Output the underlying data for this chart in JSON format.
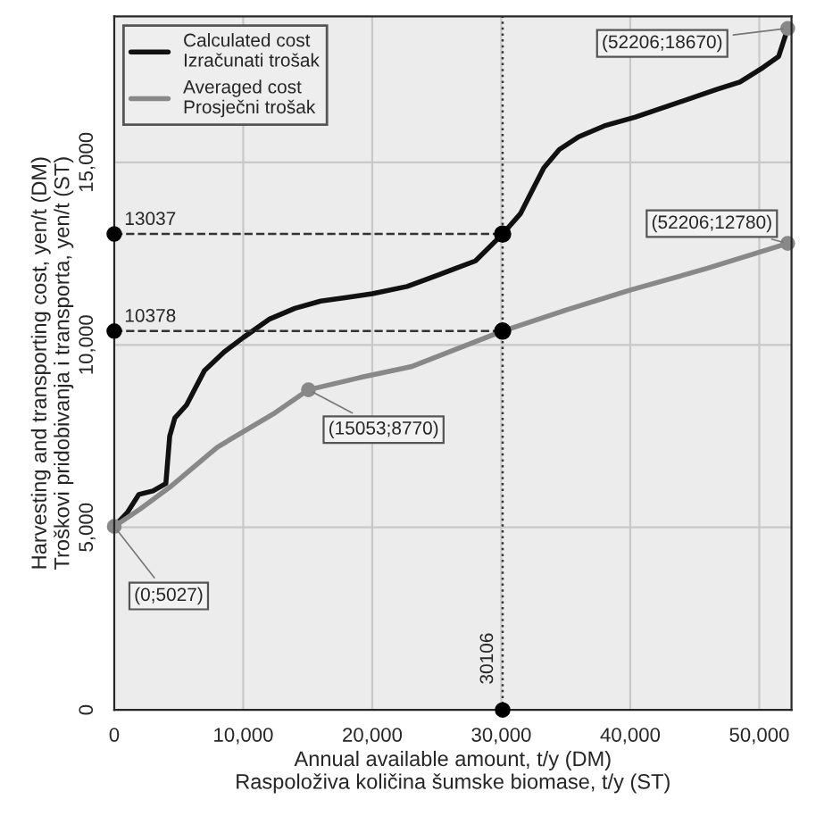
{
  "chart_data": {
    "type": "line",
    "xlabel": "Annual available amount, t/y (DM)\nRaspoloživa količina šumske biomase, t/y (ST)",
    "ylabel": "Harvesting and transporting cost, yen/t (DM)\nTroškovi pridobivanja i transporta, yen/t (ST)",
    "series": [
      {
        "name": "Calculated cost\nIzračunati trošak",
        "color": "#111111",
        "x": [
          0,
          1000,
          1900,
          3000,
          4000,
          4300,
          4700,
          5600,
          7000,
          8500,
          10000,
          12000,
          14000,
          16000,
          18000,
          20000,
          22700,
          25000,
          28000,
          30106,
          31500,
          32500,
          33300,
          34500,
          36000,
          38000,
          40400,
          43000,
          46700,
          48500,
          50300,
          51500,
          52206
        ],
        "values": [
          5027,
          5400,
          5900,
          6000,
          6200,
          7500,
          8000,
          8350,
          9300,
          9800,
          10200,
          10700,
          11000,
          11200,
          11300,
          11400,
          11600,
          11900,
          12300,
          13037,
          13600,
          14300,
          14850,
          15350,
          15700,
          16000,
          16240,
          16550,
          17000,
          17200,
          17600,
          17900,
          18670
        ]
      },
      {
        "name": "Averaged cost\nProsječni trošak",
        "color": "#888888",
        "x": [
          0,
          2000,
          4300,
          8000,
          12300,
          15053,
          19000,
          23000,
          30106,
          35000,
          40000,
          46000,
          52206
        ],
        "values": [
          5027,
          5500,
          6100,
          7200,
          8100,
          8770,
          9100,
          9400,
          10378,
          10950,
          11500,
          12100,
          12780
        ]
      },
      {
        "type": "scatter",
        "color": "#000000",
        "x": [
          0,
          0,
          30106
        ],
        "values": [
          13037,
          10378,
          0
        ]
      }
    ],
    "xlim": [
      0,
      52500
    ],
    "ylim": [
      0,
      19000
    ],
    "xticks": [
      0,
      {
        "value": 10000,
        "label": "10,000"
      },
      {
        "value": 20000,
        "label": "20,000"
      },
      {
        "value": 30000,
        "label": "30,000"
      },
      {
        "value": 40000,
        "label": "40,000"
      },
      {
        "value": 50000,
        "label": "50,000"
      }
    ],
    "yticks": [
      0,
      {
        "value": 5000,
        "label": "5,000"
      },
      {
        "value": 10000,
        "label": "10,000"
      },
      {
        "value": 15000,
        "label": "15,000"
      }
    ],
    "ref_lines": [
      {
        "axis": "y",
        "value": 13037,
        "label": "13037",
        "line_style": "dashed"
      },
      {
        "axis": "y",
        "value": 10378,
        "label": "10378",
        "line_style": "dashed"
      },
      {
        "axis": "x",
        "value": 30106,
        "label": "30106",
        "line_style": "dotted"
      }
    ],
    "annotations": [
      {
        "text": "(52206;18670)",
        "x": 52206,
        "y": 18670
      },
      {
        "text": "(52206;12780)",
        "x": 52206,
        "y": 12780
      },
      {
        "text": "(15053;8770)",
        "x": 15053,
        "y": 8770
      },
      {
        "text": "(0;5027)",
        "x": 0,
        "y": 5027
      }
    ],
    "grid": true,
    "legend": "top left",
    "line_style": "solid"
  }
}
